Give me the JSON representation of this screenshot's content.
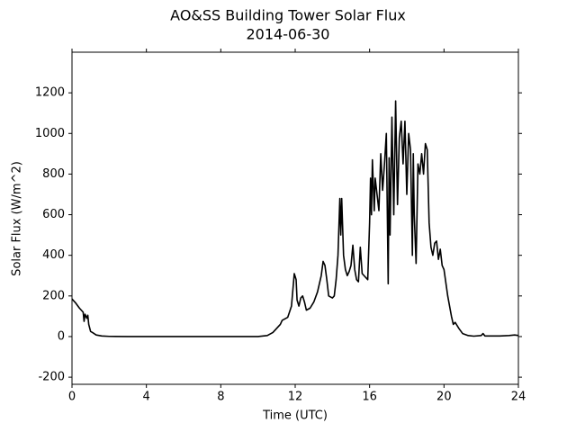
{
  "chart_data": {
    "type": "line",
    "title": "AO&SS Building Tower Solar Flux",
    "subtitle": "2014-06-30",
    "x_label": "Time (UTC)",
    "y_label": "Solar Flux (W/m^2)",
    "xlim": [
      0,
      24
    ],
    "ylim": [
      -235,
      1400
    ],
    "xticks": [
      0,
      4,
      8,
      12,
      16,
      20,
      24
    ],
    "yticks": [
      -200,
      0,
      200,
      400,
      600,
      800,
      1000,
      1200
    ],
    "grid": false,
    "series": [
      {
        "color": "#000000",
        "x": [
          0,
          0.2,
          0.4,
          0.6,
          0.65,
          0.7,
          0.8,
          0.85,
          0.9,
          1.0,
          1.1,
          1.3,
          1.6,
          2,
          3,
          4,
          5,
          6,
          7,
          8,
          9,
          10,
          10.5,
          10.8,
          11,
          11.2,
          11.3,
          11.5,
          11.6,
          11.8,
          11.95,
          12.05,
          12.1,
          12.2,
          12.3,
          12.4,
          12.5,
          12.6,
          12.8,
          13,
          13.2,
          13.4,
          13.5,
          13.6,
          13.7,
          13.8,
          14.0,
          14.1,
          14.2,
          14.3,
          14.4,
          14.45,
          14.5,
          14.6,
          14.7,
          14.8,
          14.9,
          15.0,
          15.1,
          15.2,
          15.3,
          15.4,
          15.5,
          15.6,
          15.7,
          15.8,
          15.9,
          16.0,
          16.05,
          16.1,
          16.15,
          16.25,
          16.3,
          16.4,
          16.5,
          16.6,
          16.7,
          16.8,
          16.9,
          17.0,
          17.05,
          17.1,
          17.2,
          17.3,
          17.4,
          17.5,
          17.6,
          17.7,
          17.8,
          17.9,
          18.0,
          18.1,
          18.2,
          18.3,
          18.35,
          18.4,
          18.5,
          18.6,
          18.7,
          18.8,
          18.9,
          19.0,
          19.1,
          19.2,
          19.3,
          19.4,
          19.5,
          19.6,
          19.7,
          19.8,
          19.9,
          20.0,
          20.2,
          20.4,
          20.5,
          20.6,
          20.8,
          21,
          21.3,
          21.6,
          22,
          22.1,
          22.2,
          23,
          23.5,
          23.8,
          24
        ],
        "values": [
          185,
          165,
          140,
          120,
          75,
          110,
          90,
          105,
          60,
          25,
          20,
          8,
          3,
          1,
          0,
          0,
          0,
          0,
          0,
          0,
          0,
          0,
          5,
          20,
          40,
          60,
          80,
          90,
          95,
          150,
          310,
          280,
          180,
          150,
          190,
          200,
          170,
          130,
          140,
          170,
          220,
          300,
          370,
          350,
          280,
          200,
          190,
          200,
          280,
          400,
          680,
          500,
          680,
          400,
          330,
          300,
          320,
          350,
          450,
          330,
          280,
          270,
          440,
          310,
          300,
          290,
          280,
          560,
          780,
          600,
          870,
          620,
          780,
          700,
          620,
          900,
          720,
          850,
          1000,
          260,
          880,
          500,
          1080,
          600,
          1160,
          650,
          980,
          1060,
          850,
          1060,
          700,
          1000,
          920,
          400,
          900,
          600,
          360,
          850,
          800,
          900,
          800,
          950,
          920,
          560,
          440,
          400,
          460,
          470,
          380,
          430,
          350,
          330,
          200,
          100,
          60,
          70,
          40,
          15,
          5,
          2,
          5,
          15,
          3,
          3,
          5,
          8,
          5
        ]
      }
    ]
  }
}
